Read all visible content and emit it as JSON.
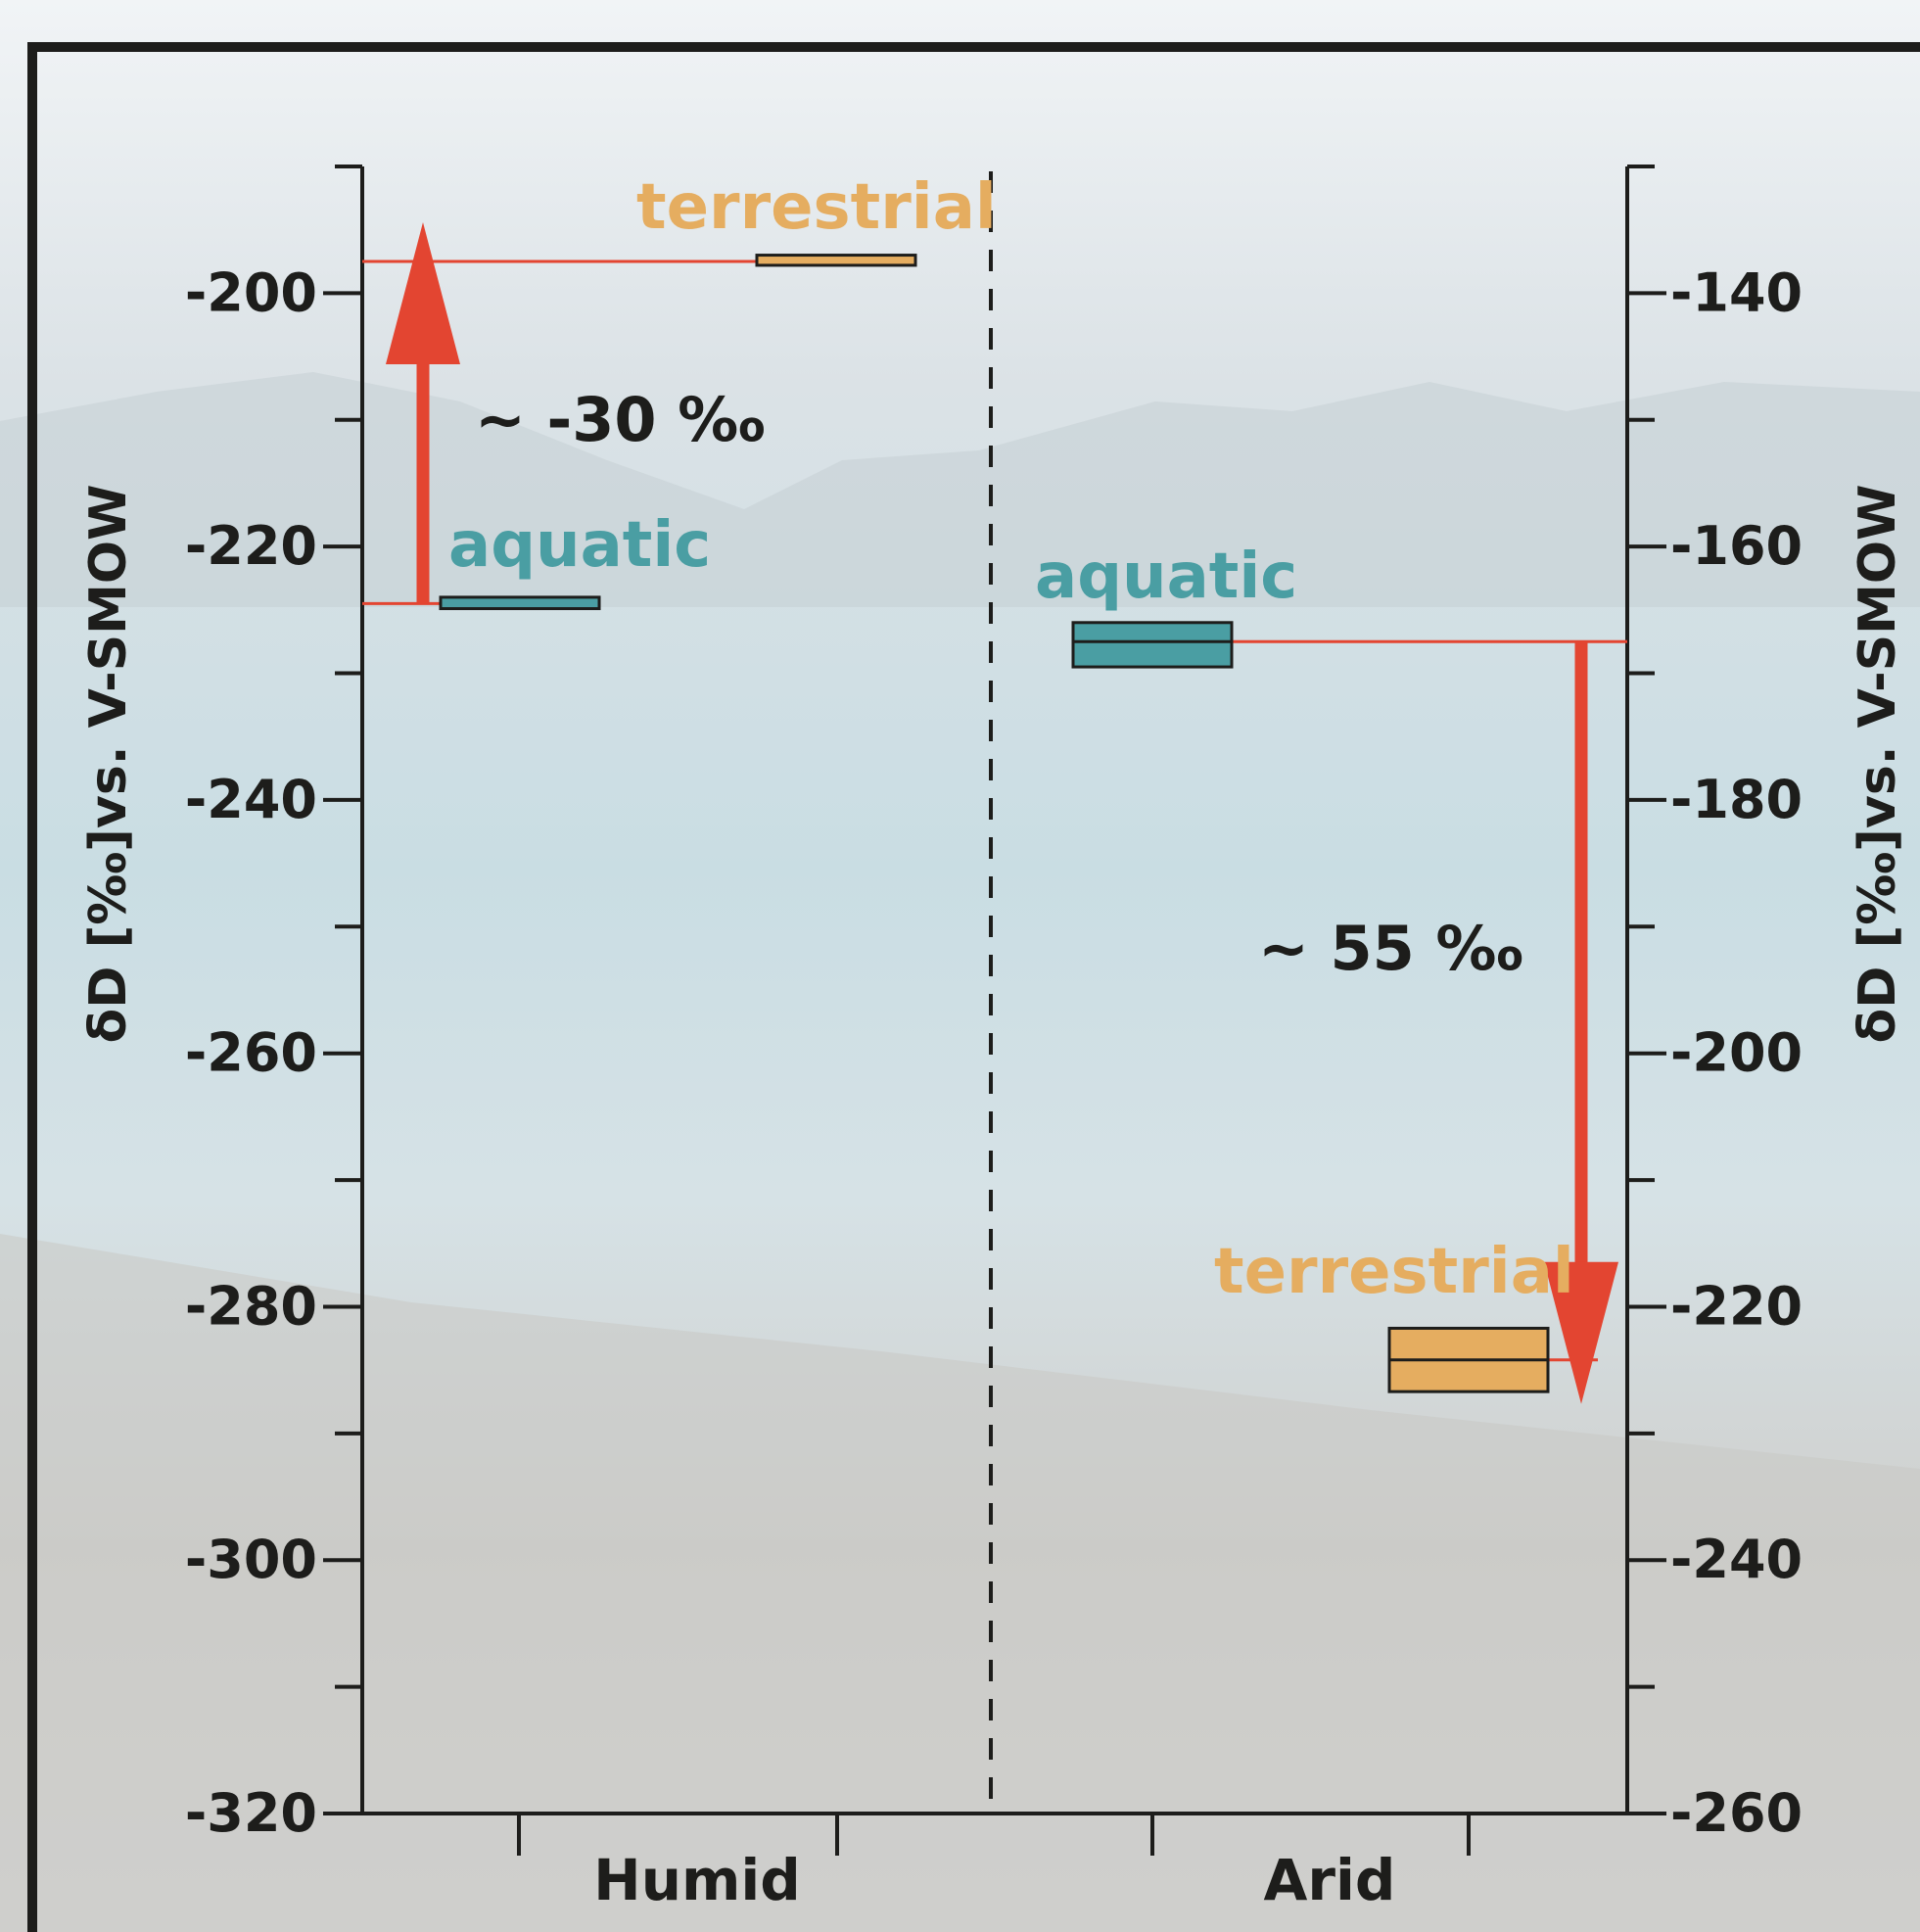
{
  "colors": {
    "aquatic": "#4a9ea3",
    "terrestrial": "#e5ad60",
    "arrow": "#e34531",
    "axis": "#1d1d1b",
    "frame": "#1d1d1b"
  },
  "chart_data": {
    "type": "range",
    "title": "",
    "categories": [
      "Humid",
      "Arid"
    ],
    "left_axis": {
      "label": "δD [‰]vs. V-SMOW",
      "ylim": [
        -320,
        -190
      ],
      "ticks": [
        "-200",
        "-220",
        "-240",
        "-260",
        "-280",
        "-300",
        "-320"
      ],
      "applies_to": "Humid"
    },
    "right_axis": {
      "label": "δD [‰]vs. V-SMOW",
      "ylim": [
        -260,
        -130
      ],
      "ticks": [
        "-140",
        "-160",
        "-180",
        "-200",
        "-220",
        "-240",
        "-260"
      ],
      "applies_to": "Arid"
    },
    "series": [
      {
        "panel": "Humid",
        "name": "aquatic",
        "label": "aquatic",
        "value": -224.5,
        "range": [
          -224.9,
          -224.0
        ]
      },
      {
        "panel": "Humid",
        "name": "terrestrial",
        "label": "terrestrial",
        "value": -197.5,
        "range": [
          -197.8,
          -197.0
        ]
      },
      {
        "panel": "Arid",
        "name": "aquatic",
        "label": "aquatic",
        "value": -167.5,
        "range": [
          -169.5,
          -166.0
        ]
      },
      {
        "panel": "Arid",
        "name": "terrestrial",
        "label": "terrestrial",
        "value": -224.2,
        "range": [
          -226.7,
          -221.7
        ]
      }
    ],
    "annotations": [
      {
        "panel": "Humid",
        "text": "~ -30 ‰",
        "from": -224.5,
        "to": -197.5,
        "direction": "up"
      },
      {
        "panel": "Arid",
        "text": "~ 55 ‰",
        "from": -167.5,
        "to": -224.2,
        "direction": "down"
      }
    ]
  }
}
